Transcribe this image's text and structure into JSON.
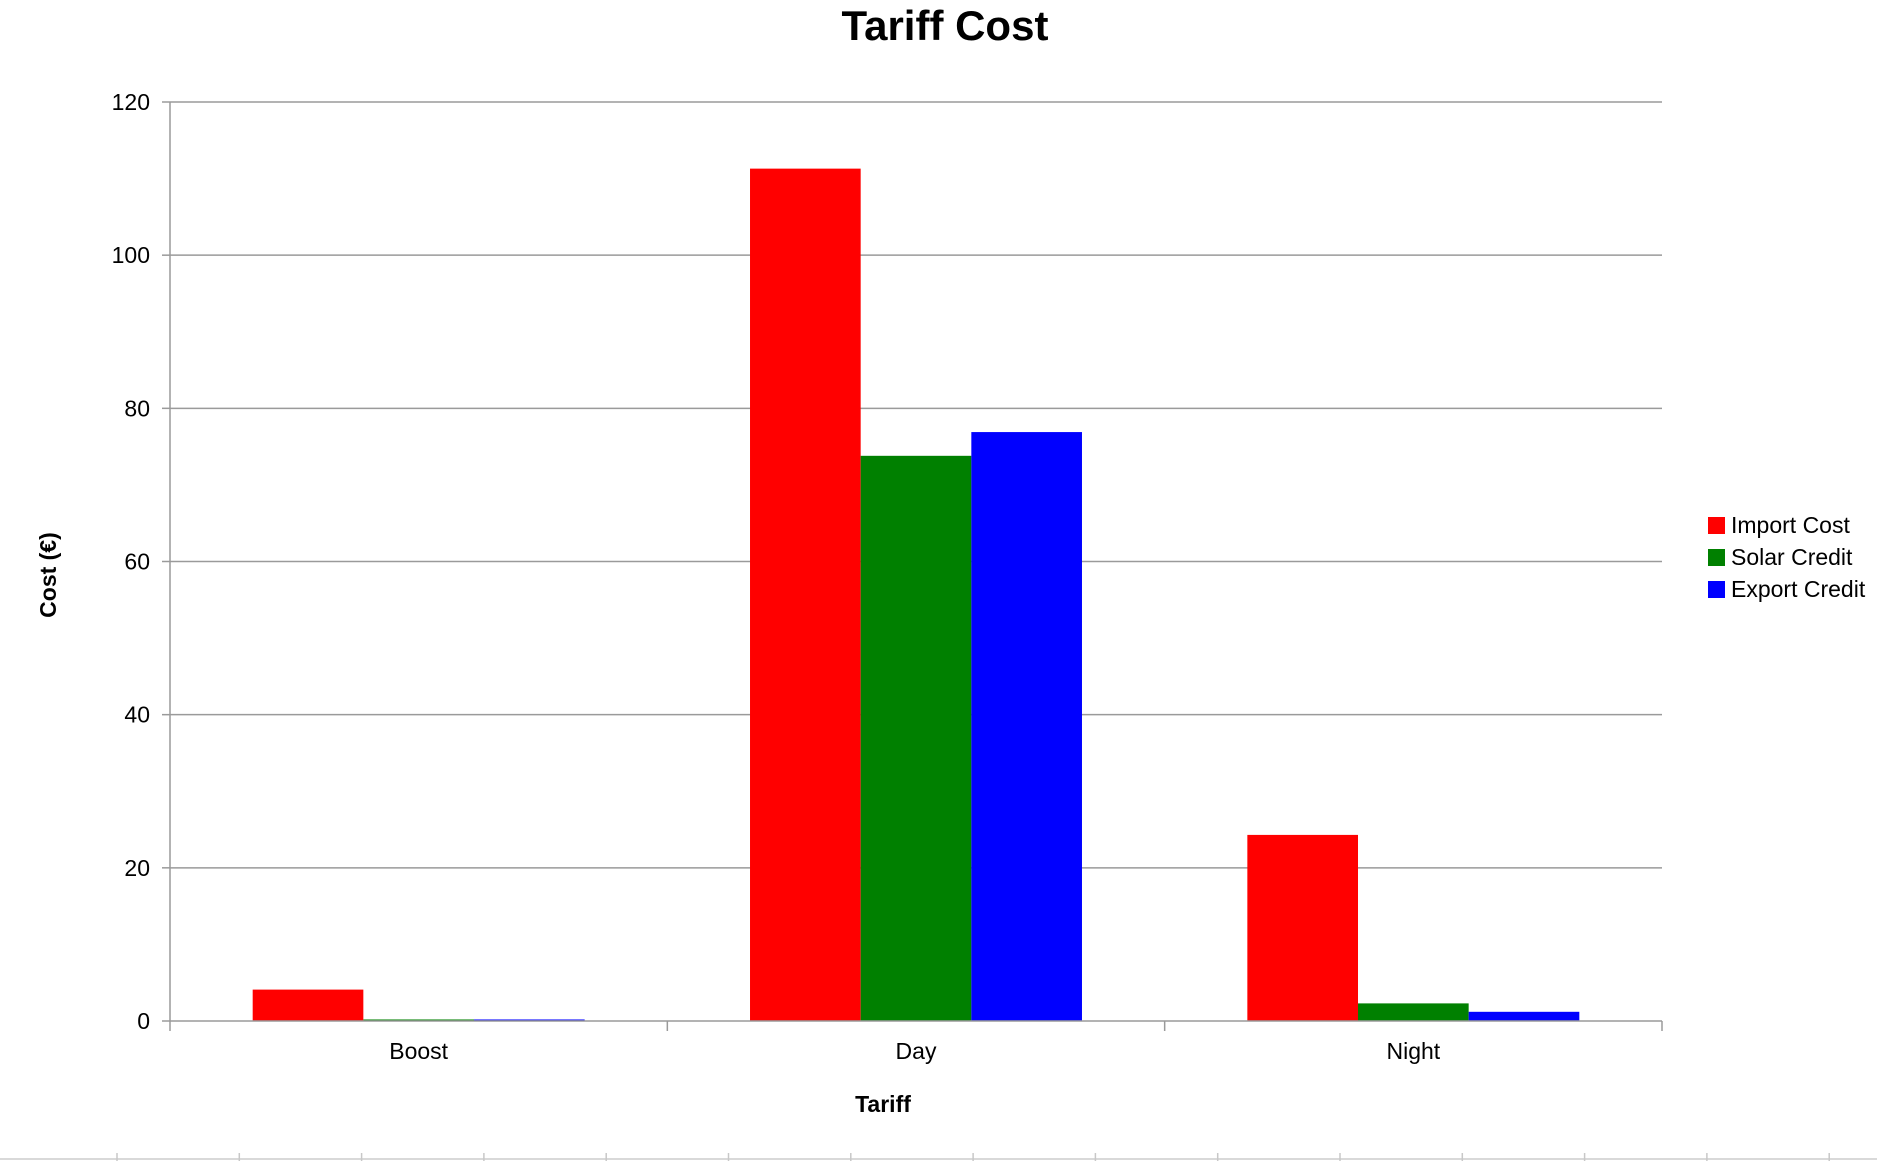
{
  "chart_data": {
    "type": "bar",
    "title": "Tariff Cost",
    "xlabel": "Tariff",
    "ylabel": "Cost (€)",
    "categories": [
      "Boost",
      "Day",
      "Night"
    ],
    "series": [
      {
        "name": "Import Cost",
        "color": "#ff0000",
        "values": [
          4.1,
          111.3,
          24.3
        ]
      },
      {
        "name": "Solar Credit",
        "color": "#008000",
        "values": [
          0.2,
          73.8,
          2.3
        ]
      },
      {
        "name": "Export Credit",
        "color": "#0000ff",
        "values": [
          0.2,
          76.9,
          1.2
        ]
      }
    ],
    "ylim": [
      0,
      120
    ],
    "yticks": [
      0,
      20,
      40,
      60,
      80,
      100,
      120
    ],
    "grid": true,
    "legend_position": "right"
  }
}
